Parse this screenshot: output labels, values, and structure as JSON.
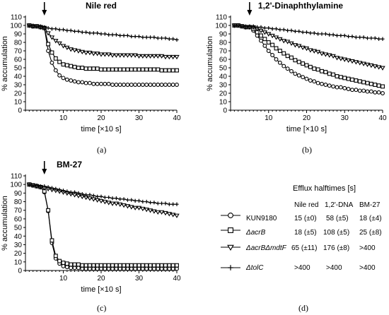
{
  "chart_data": [
    {
      "type": "line",
      "title": "Nile red",
      "xlabel": "time [×10 s]",
      "ylabel": "% accumulation",
      "caption": "(a)",
      "xlim": [
        0,
        40
      ],
      "ylim": [
        0,
        110
      ],
      "xticks": [
        10,
        20,
        30,
        40
      ],
      "yticks": [
        0,
        10,
        20,
        30,
        40,
        50,
        60,
        70,
        80,
        90,
        100,
        110
      ],
      "arrow_x": 5,
      "x": [
        1,
        2,
        3,
        4,
        5,
        6,
        7,
        8,
        9,
        10,
        11,
        12,
        13,
        14,
        15,
        16,
        17,
        18,
        19,
        20,
        21,
        22,
        23,
        24,
        25,
        26,
        27,
        28,
        29,
        30,
        31,
        32,
        33,
        34,
        35,
        36,
        37,
        38,
        39,
        40
      ],
      "series": [
        {
          "name": "KUN9180",
          "marker": "circle",
          "values": [
            100,
            99,
            99,
            98,
            97,
            70,
            56,
            47,
            41,
            38,
            36,
            35,
            34,
            33,
            33,
            32,
            32,
            31,
            31,
            31,
            31,
            31,
            30,
            30,
            30,
            30,
            30,
            30,
            30,
            30,
            30,
            30,
            30,
            30,
            30,
            30,
            30,
            30,
            30,
            30
          ]
        },
        {
          "name": "ΔacrB",
          "marker": "square",
          "values": [
            100,
            99,
            99,
            98,
            97,
            78,
            68,
            61,
            57,
            54,
            53,
            52,
            51,
            50,
            50,
            49,
            49,
            49,
            49,
            48,
            48,
            48,
            48,
            48,
            48,
            48,
            48,
            48,
            48,
            48,
            48,
            48,
            48,
            48,
            48,
            47,
            47,
            47,
            47,
            47
          ]
        },
        {
          "name": "ΔacrBΔmdtF",
          "marker": "triangle",
          "values": [
            100,
            99,
            99,
            98,
            97,
            91,
            86,
            82,
            79,
            76,
            74,
            72,
            71,
            70,
            69,
            68,
            68,
            67,
            67,
            66,
            66,
            66,
            65,
            65,
            65,
            65,
            65,
            65,
            65,
            64,
            64,
            64,
            64,
            64,
            64,
            64,
            63,
            63,
            63,
            63
          ]
        },
        {
          "name": "ΔtolC",
          "marker": "plus",
          "values": [
            100,
            100,
            99,
            99,
            98,
            97,
            96,
            96,
            95,
            95,
            94,
            94,
            93,
            93,
            92,
            92,
            91,
            91,
            91,
            90,
            90,
            89,
            89,
            89,
            88,
            88,
            88,
            87,
            87,
            87,
            86,
            86,
            86,
            86,
            85,
            85,
            85,
            84,
            84,
            83
          ]
        }
      ]
    },
    {
      "type": "line",
      "title": "1,2'-Dinaphthylamine",
      "xlabel": "time [×10 s]",
      "ylabel": "% accumulation",
      "caption": "(b)",
      "xlim": [
        0,
        40
      ],
      "ylim": [
        0,
        110
      ],
      "xticks": [
        10,
        20,
        30,
        40
      ],
      "yticks": [
        0,
        10,
        20,
        30,
        40,
        50,
        60,
        70,
        80,
        90,
        100,
        110
      ],
      "arrow_x": 5,
      "x": [
        1,
        2,
        3,
        4,
        5,
        6,
        7,
        8,
        9,
        10,
        11,
        12,
        13,
        14,
        15,
        16,
        17,
        18,
        19,
        20,
        21,
        22,
        23,
        24,
        25,
        26,
        27,
        28,
        29,
        30,
        31,
        32,
        33,
        34,
        35,
        36,
        37,
        38,
        39,
        40
      ],
      "series": [
        {
          "name": "KUN9180",
          "marker": "circle",
          "values": [
            100,
            100,
            99,
            98,
            98,
            94,
            88,
            82,
            76,
            70,
            65,
            60,
            56,
            52,
            49,
            46,
            43,
            41,
            39,
            37,
            35,
            34,
            32,
            31,
            30,
            29,
            28,
            27,
            27,
            26,
            25,
            24,
            24,
            23,
            23,
            22,
            22,
            21,
            21,
            20
          ]
        },
        {
          "name": "ΔacrB",
          "marker": "square",
          "values": [
            100,
            100,
            99,
            98,
            98,
            96,
            92,
            88,
            84,
            80,
            77,
            73,
            70,
            67,
            64,
            62,
            59,
            57,
            55,
            53,
            51,
            49,
            48,
            46,
            45,
            43,
            42,
            40,
            39,
            38,
            37,
            36,
            35,
            34,
            33,
            32,
            31,
            30,
            29,
            28
          ]
        },
        {
          "name": "ΔacrBΔmdtF",
          "marker": "triangle",
          "values": [
            100,
            100,
            99,
            98,
            98,
            98,
            96,
            94,
            92,
            90,
            88,
            86,
            84,
            82,
            81,
            79,
            77,
            76,
            74,
            73,
            71,
            70,
            69,
            67,
            66,
            65,
            64,
            62,
            61,
            60,
            59,
            58,
            57,
            56,
            55,
            54,
            53,
            52,
            51,
            50
          ]
        },
        {
          "name": "ΔtolC",
          "marker": "plus",
          "values": [
            100,
            100,
            99,
            99,
            99,
            99,
            98,
            98,
            97,
            97,
            96,
            96,
            95,
            95,
            94,
            94,
            93,
            93,
            92,
            92,
            91,
            91,
            90,
            90,
            90,
            89,
            89,
            88,
            88,
            88,
            87,
            87,
            86,
            86,
            86,
            85,
            85,
            85,
            84,
            84
          ]
        }
      ]
    },
    {
      "type": "line",
      "title": "BM-27",
      "xlabel": "time [×10 s]",
      "ylabel": "% accumulation",
      "caption": "(c)",
      "xlim": [
        0,
        40
      ],
      "ylim": [
        0,
        110
      ],
      "xticks": [
        10,
        20,
        30,
        40
      ],
      "yticks": [
        0,
        10,
        20,
        30,
        40,
        50,
        60,
        70,
        80,
        90,
        100,
        110
      ],
      "arrow_x": 5,
      "x": [
        1,
        2,
        3,
        4,
        5,
        6,
        7,
        8,
        9,
        10,
        11,
        12,
        13,
        14,
        15,
        16,
        17,
        18,
        19,
        20,
        21,
        22,
        23,
        24,
        25,
        26,
        27,
        28,
        29,
        30,
        31,
        32,
        33,
        34,
        35,
        36,
        37,
        38,
        39,
        40
      ],
      "series": [
        {
          "name": "KUN9180",
          "marker": "circle",
          "values": [
            100,
            99,
            98,
            97,
            91,
            69,
            32,
            14,
            8,
            5,
            4,
            3,
            3,
            3,
            2,
            2,
            2,
            2,
            2,
            2,
            2,
            2,
            2,
            2,
            2,
            2,
            2,
            2,
            2,
            2,
            2,
            2,
            2,
            2,
            2,
            2,
            2,
            2,
            2,
            2
          ]
        },
        {
          "name": "ΔacrB",
          "marker": "square",
          "values": [
            100,
            99,
            98,
            97,
            92,
            70,
            35,
            17,
            11,
            9,
            8,
            7,
            7,
            7,
            6,
            6,
            6,
            6,
            6,
            6,
            6,
            6,
            6,
            6,
            6,
            6,
            6,
            6,
            6,
            6,
            6,
            6,
            6,
            6,
            6,
            6,
            6,
            6,
            6,
            6
          ]
        },
        {
          "name": "ΔacrBΔmdtF",
          "marker": "triangle",
          "values": [
            100,
            99,
            98,
            97,
            96,
            95,
            94,
            93,
            92,
            91,
            90,
            89,
            88,
            87,
            86,
            85,
            84,
            83,
            82,
            81,
            80,
            79,
            78,
            78,
            77,
            76,
            75,
            74,
            73,
            73,
            72,
            71,
            70,
            69,
            68,
            68,
            67,
            66,
            65,
            64
          ]
        },
        {
          "name": "ΔtolC",
          "marker": "plus",
          "values": [
            100,
            99,
            99,
            98,
            98,
            97,
            96,
            95,
            94,
            93,
            92,
            91,
            91,
            90,
            89,
            88,
            88,
            87,
            86,
            86,
            85,
            85,
            84,
            84,
            83,
            83,
            82,
            82,
            81,
            81,
            80,
            80,
            79,
            79,
            78,
            78,
            78,
            77,
            77,
            77
          ]
        }
      ]
    }
  ],
  "legend_table": {
    "caption": "(d)",
    "title": "Efflux halftimes [s]",
    "columns": [
      "Nile red",
      "1,2'-DNA",
      "BM-27"
    ],
    "rows": [
      {
        "strain": "KUN9180",
        "marker": "circle",
        "values": [
          "15 (±0)",
          "58 (±5)",
          "18 (±4)"
        ]
      },
      {
        "strain": "ΔacrB",
        "marker": "square",
        "values": [
          "18 (±5)",
          "108 (±5)",
          "25 (±8)"
        ]
      },
      {
        "strain": "ΔacrBΔmdtF",
        "marker": "triangle",
        "values": [
          "65 (±11)",
          "176 (±8)",
          ">400"
        ]
      },
      {
        "strain": "ΔtolC",
        "marker": "plus",
        "values": [
          ">400",
          ">400",
          ">400"
        ]
      }
    ]
  }
}
